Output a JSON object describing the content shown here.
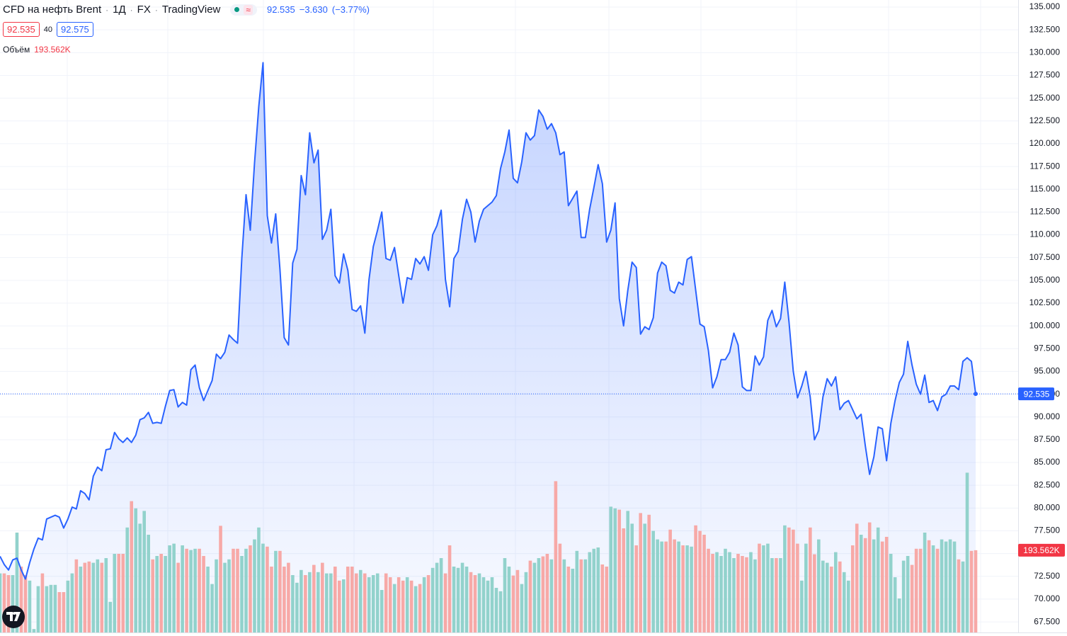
{
  "header": {
    "symbol": "CFD на нефть Brent",
    "interval": "1Д",
    "exchange": "FX",
    "source": "TradingView",
    "change": "−3.630",
    "change_pct": "(−3.77%)",
    "bid": 92.535,
    "spread": 40,
    "ask": 92.575
  },
  "chart_data": {
    "type": "area",
    "ylim": [
      66.34,
      135.78
    ],
    "yticks": [
      {
        "value": 135,
        "label": "135.000"
      },
      {
        "value": 132.5,
        "label": "132.500"
      },
      {
        "value": 130,
        "label": "130.000"
      },
      {
        "value": 127.5,
        "label": "127.500"
      },
      {
        "value": 125,
        "label": "125.000"
      },
      {
        "value": 122.5,
        "label": "122.500"
      },
      {
        "value": 120,
        "label": "120.000"
      },
      {
        "value": 117.5,
        "label": "117.500"
      },
      {
        "value": 115,
        "label": "115.000"
      },
      {
        "value": 112.5,
        "label": "112.500"
      },
      {
        "value": 110,
        "label": "110.000"
      },
      {
        "value": 107.5,
        "label": "107.500"
      },
      {
        "value": 105,
        "label": "105.000"
      },
      {
        "value": 102.5,
        "label": "102.500"
      },
      {
        "value": 100,
        "label": "100.000"
      },
      {
        "value": 97.5,
        "label": "97.500"
      },
      {
        "value": 95,
        "label": "95.000"
      },
      {
        "value": 92.5,
        "label": "92.500"
      },
      {
        "value": 90,
        "label": "90.000"
      },
      {
        "value": 87.5,
        "label": "87.500"
      },
      {
        "value": 85,
        "label": "85.000"
      },
      {
        "value": 82.5,
        "label": "82.500"
      },
      {
        "value": 80,
        "label": "80.000"
      },
      {
        "value": 77.5,
        "label": "77.500"
      },
      {
        "value": 75,
        "label": "75.000"
      },
      {
        "value": 72.5,
        "label": "72.500"
      },
      {
        "value": 70,
        "label": "70.000"
      },
      {
        "value": 67.5,
        "label": "67.500"
      }
    ],
    "grid": true,
    "series": [
      {
        "color": "#2962ff",
        "values": [
          74.7,
          73.8,
          73.2,
          74.3,
          74.5,
          73.2,
          72.2,
          74.0,
          75.5,
          76.7,
          76.5,
          78.8,
          79.0,
          79.2,
          79.0,
          77.8,
          78.8,
          80.1,
          79.9,
          81.9,
          81.6,
          80.9,
          83.5,
          84.5,
          84.1,
          86.4,
          86.5,
          88.3,
          87.6,
          87.2,
          87.7,
          87.2,
          88.0,
          89.7,
          89.9,
          90.5,
          89.3,
          89.4,
          89.3,
          91.2,
          92.9,
          93.0,
          91.1,
          91.6,
          91.3,
          95.2,
          95.7,
          93.2,
          91.8,
          92.9,
          94.0,
          96.9,
          96.4,
          97.1,
          99.0,
          98.5,
          98.1,
          107.4,
          114.4,
          110.5,
          117.9,
          124.1,
          128.9,
          112.1,
          109.1,
          112.3,
          106.2,
          98.7,
          97.9,
          106.9,
          108.4,
          116.5,
          114.4,
          121.2,
          117.9,
          119.3,
          109.5,
          110.5,
          112.8,
          105.5,
          104.7,
          107.9,
          106.1,
          101.8,
          101.6,
          102.2,
          99.2,
          105.1,
          108.7,
          110.5,
          112.5,
          107.4,
          107.2,
          108.6,
          105.5,
          102.5,
          105.3,
          105.1,
          107.4,
          106.8,
          107.6,
          106.1,
          110.0,
          111.0,
          112.7,
          105.1,
          102.1,
          107.4,
          108.2,
          111.7,
          113.9,
          112.5,
          109.2,
          111.5,
          112.8,
          113.2,
          113.6,
          114.3,
          117.3,
          119.1,
          121.5,
          116.2,
          115.7,
          118.0,
          121.2,
          120.4,
          120.9,
          123.7,
          123.0,
          121.6,
          122.2,
          121.2,
          118.8,
          119.1,
          113.2,
          114.0,
          114.8,
          109.7,
          109.7,
          112.8,
          115.2,
          117.7,
          115.6,
          109.2,
          110.5,
          113.5,
          103.0,
          100.0,
          103.9,
          107.0,
          106.4,
          99.1,
          99.9,
          99.6,
          100.9,
          105.8,
          107.0,
          106.6,
          103.9,
          103.6,
          104.8,
          104.5,
          107.3,
          107.6,
          103.9,
          100.2,
          99.9,
          97.3,
          93.2,
          94.4,
          96.3,
          96.3,
          97.1,
          99.2,
          97.9,
          93.3,
          92.9,
          92.9,
          96.7,
          95.7,
          96.6,
          100.6,
          101.7,
          99.9,
          100.8,
          104.8,
          100.4,
          95.0,
          92.1,
          93.4,
          95.0,
          92.2,
          87.5,
          88.5,
          92.2,
          94.2,
          93.4,
          94.4,
          90.8,
          91.5,
          91.8,
          90.8,
          89.8,
          90.3,
          86.8,
          83.7,
          85.6,
          88.9,
          88.7,
          85.2,
          89.3,
          91.8,
          93.8,
          94.7,
          98.3,
          95.7,
          93.6,
          92.5,
          94.6,
          91.6,
          91.8,
          90.7,
          92.2,
          92.5,
          93.4,
          93.4,
          93.0,
          96.1,
          96.5,
          96.1,
          92.535
        ]
      }
    ],
    "volume": {
      "name": "Объём",
      "last_label": "193.562K",
      "up_color": "#92d2cc",
      "down_color": "#f7a9a7",
      "values": [
        139,
        139,
        135,
        135,
        235,
        155,
        135,
        122,
        8,
        109,
        139,
        109,
        112,
        112,
        95,
        95,
        122,
        139,
        172,
        155,
        164,
        167,
        164,
        172,
        164,
        175,
        72,
        185,
        185,
        185,
        247,
        309,
        292,
        256,
        286,
        230,
        172,
        180,
        185,
        180,
        205,
        209,
        164,
        205,
        197,
        194,
        197,
        197,
        180,
        155,
        114,
        172,
        251,
        164,
        172,
        197,
        197,
        180,
        197,
        205,
        219,
        247,
        209,
        202,
        155,
        192,
        192,
        155,
        164,
        135,
        117,
        147,
        135,
        142,
        159,
        142,
        164,
        139,
        139,
        155,
        122,
        125,
        155,
        155,
        139,
        147,
        139,
        130,
        135,
        139,
        100,
        139,
        130,
        114,
        130,
        122,
        130,
        122,
        109,
        114,
        130,
        135,
        152,
        164,
        175,
        139,
        205,
        155,
        152,
        164,
        155,
        142,
        135,
        139,
        130,
        122,
        130,
        105,
        97,
        175,
        155,
        134,
        147,
        114,
        142,
        169,
        164,
        175,
        179,
        185,
        172,
        356,
        209,
        172,
        155,
        150,
        192,
        172,
        172,
        189,
        197,
        200,
        160,
        155,
        296,
        292,
        289,
        245,
        286,
        256,
        205,
        281,
        256,
        277,
        239,
        219,
        214,
        214,
        242,
        219,
        214,
        205,
        205,
        202,
        252,
        239,
        230,
        197,
        185,
        189,
        180,
        197,
        189,
        175,
        185,
        180,
        177,
        189,
        172,
        209,
        205,
        209,
        175,
        175,
        175,
        252,
        247,
        242,
        209,
        122,
        209,
        247,
        184,
        219,
        169,
        164,
        155,
        189,
        167,
        142,
        122,
        205,
        256,
        230,
        222,
        259,
        219,
        247,
        214,
        225,
        185,
        130,
        80,
        169,
        180,
        159,
        197,
        197,
        235,
        217,
        205,
        197,
        219,
        214,
        219,
        214,
        172,
        167,
        376,
        192,
        193.562
      ]
    }
  }
}
